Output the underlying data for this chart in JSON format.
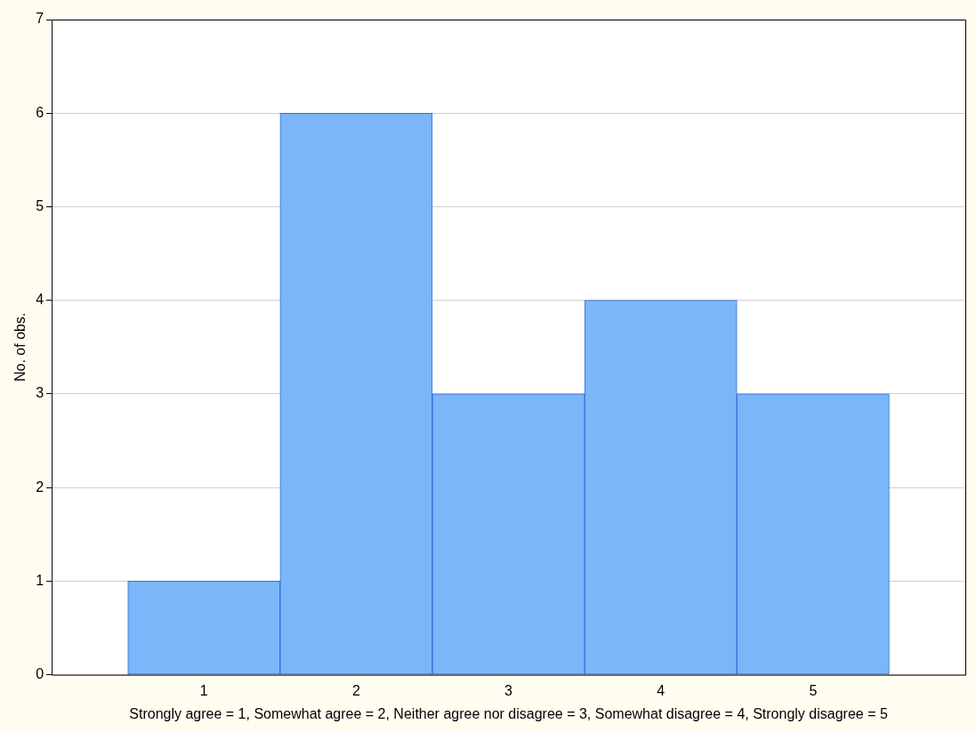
{
  "chart_data": {
    "type": "histogram",
    "bins": [
      0.5,
      1.5,
      2.5,
      3.5,
      4.5,
      5.5
    ],
    "values": [
      1,
      6,
      3,
      4,
      3
    ],
    "color": "#7ab6f8",
    "xlim": [
      0,
      6
    ],
    "xticks": [
      1,
      2,
      3,
      4,
      5
    ],
    "ylim": [
      0,
      7
    ],
    "yticks": [
      0,
      1,
      2,
      3,
      4,
      5,
      6,
      7
    ],
    "ylabel": "No. of obs.",
    "xlabel": "Strongly agree = 1, Somewhat agree = 2, Neither agree nor disagree = 3, Somewhat disagree = 4, Strongly disagree = 5",
    "grid": "y"
  }
}
